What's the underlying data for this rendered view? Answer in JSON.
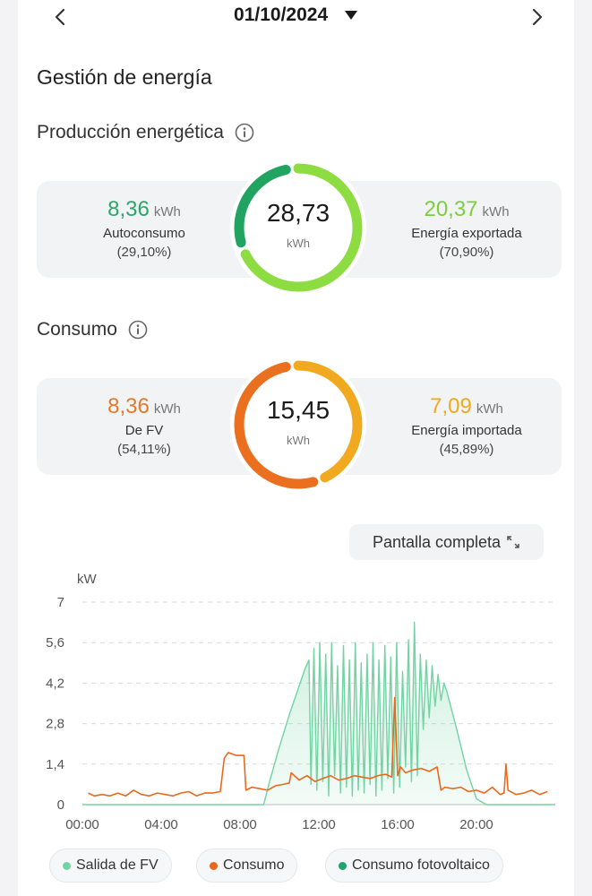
{
  "header": {
    "date": "01/10/2024"
  },
  "title": "Gestión de energía",
  "production": {
    "heading": "Producción energética",
    "total": "28,73",
    "total_unit": "kWh",
    "left": {
      "value": "8,36",
      "unit": "kWh",
      "label": "Autoconsumo",
      "percent": "(29,10%)",
      "color": "#27a86a"
    },
    "right": {
      "value": "20,37",
      "unit": "kWh",
      "label": "Energía exportada",
      "percent": "(70,90%)",
      "color": "#7ccf3c"
    },
    "ring_share": 0.291,
    "ring_colors": [
      "#21a462",
      "#8ddc42"
    ]
  },
  "consumption": {
    "heading": "Consumo",
    "total": "15,45",
    "total_unit": "kWh",
    "left": {
      "value": "8,36",
      "unit": "kWh",
      "label": "De FV",
      "percent": "(54,11%)",
      "color": "#e5782a"
    },
    "right": {
      "value": "7,09",
      "unit": "kWh",
      "label": "Energía importada",
      "percent": "(45,89%)",
      "color": "#f0a81c"
    },
    "ring_share": 0.5411,
    "ring_colors": [
      "#ea6f1e",
      "#f1aa1f"
    ]
  },
  "fullscreen_label": "Pantalla completa",
  "legend": {
    "pv_output": "Salida de FV",
    "consumption": "Consumo",
    "pv_self": "Consumo fotovoltaico"
  },
  "chart_data": {
    "type": "line",
    "ylabel": "kW",
    "ylim": [
      0,
      7
    ],
    "yticks": [
      0,
      1.4,
      2.8,
      4.2,
      5.6,
      7
    ],
    "ytick_labels": [
      "0",
      "1,4",
      "2,8",
      "4,2",
      "5,6",
      "7"
    ],
    "xlim": [
      0,
      24
    ],
    "xticks": [
      0,
      4,
      8,
      12,
      16,
      20
    ],
    "xtick_labels": [
      "00:00",
      "04:00",
      "08:00",
      "12:00",
      "16:00",
      "20:00"
    ],
    "grid": true,
    "series": [
      {
        "name": "Salida de FV",
        "color": "#72d3a3",
        "fill": true,
        "x": [
          0,
          9.2,
          9.5,
          10,
          10.5,
          11,
          11.3,
          11.5,
          11.6,
          11.75,
          11.9,
          12.05,
          12.2,
          12.35,
          12.5,
          12.65,
          12.8,
          12.95,
          13.1,
          13.25,
          13.4,
          13.55,
          13.7,
          13.85,
          14.0,
          14.15,
          14.3,
          14.45,
          14.6,
          14.75,
          14.9,
          15.05,
          15.2,
          15.35,
          15.5,
          15.65,
          15.8,
          15.95,
          16.1,
          16.25,
          16.4,
          16.55,
          16.7,
          16.85,
          17.0,
          17.15,
          17.3,
          17.45,
          17.6,
          17.75,
          17.9,
          18.05,
          18.2,
          18.35,
          18.5,
          19.0,
          19.5,
          20.0,
          20.5,
          24
        ],
        "y": [
          0,
          0,
          0.8,
          2.0,
          3.1,
          4.1,
          4.7,
          5.0,
          0.7,
          5.4,
          0.5,
          5.6,
          0.8,
          5.2,
          0.3,
          5.6,
          1.0,
          4.8,
          0.4,
          5.5,
          0.6,
          5.0,
          0.3,
          5.6,
          0.5,
          4.9,
          0.4,
          5.2,
          0.7,
          5.6,
          0.3,
          5.0,
          0.5,
          5.5,
          0.9,
          5.1,
          0.4,
          5.6,
          0.6,
          4.6,
          1.3,
          5.7,
          0.8,
          6.3,
          1.0,
          5.2,
          2.6,
          5.0,
          3.0,
          4.8,
          3.4,
          4.5,
          3.6,
          4.2,
          3.9,
          2.6,
          1.2,
          0.2,
          0,
          0
        ]
      },
      {
        "name": "Consumo",
        "color": "#e8691c",
        "fill": false,
        "x": [
          0.3,
          0.6,
          1.0,
          1.4,
          1.8,
          2.2,
          2.6,
          3.0,
          3.4,
          3.8,
          4.2,
          4.6,
          5.0,
          5.4,
          5.8,
          6.2,
          6.6,
          7.0,
          7.2,
          7.4,
          7.6,
          7.8,
          8.2,
          8.3,
          8.6,
          9.0,
          9.4,
          9.8,
          10.2,
          10.5,
          10.6,
          11.0,
          11.4,
          11.8,
          12.2,
          12.6,
          13.0,
          13.4,
          13.8,
          14.2,
          14.6,
          15.0,
          15.4,
          15.7,
          15.85,
          16.0,
          16.15,
          16.4,
          16.8,
          17.2,
          17.6,
          18.0,
          18.2,
          18.4,
          18.8,
          19.2,
          19.6,
          20.0,
          20.4,
          20.8,
          21.2,
          21.4,
          21.5,
          21.6,
          22.0,
          22.4,
          22.8,
          23.2,
          23.6
        ],
        "y": [
          0.4,
          0.3,
          0.35,
          0.3,
          0.4,
          0.3,
          0.5,
          0.35,
          0.3,
          0.4,
          0.35,
          0.3,
          0.4,
          0.45,
          0.3,
          0.4,
          0.4,
          0.45,
          1.6,
          1.8,
          1.75,
          1.7,
          1.7,
          0.5,
          0.6,
          0.55,
          0.5,
          0.65,
          0.7,
          0.75,
          1.1,
          0.85,
          1.0,
          0.8,
          0.9,
          1.0,
          0.85,
          0.9,
          1.0,
          0.95,
          0.9,
          1.0,
          1.05,
          0.95,
          3.7,
          1.0,
          1.3,
          1.1,
          1.2,
          1.25,
          1.15,
          1.3,
          0.5,
          0.6,
          0.55,
          0.6,
          0.45,
          0.5,
          0.4,
          0.6,
          0.35,
          0.4,
          1.4,
          0.5,
          0.35,
          0.4,
          0.5,
          0.35,
          0.45
        ]
      },
      {
        "name": "Consumo fotovoltaico",
        "color": "#1ea56f",
        "fill": false,
        "x": [],
        "y": []
      }
    ]
  }
}
